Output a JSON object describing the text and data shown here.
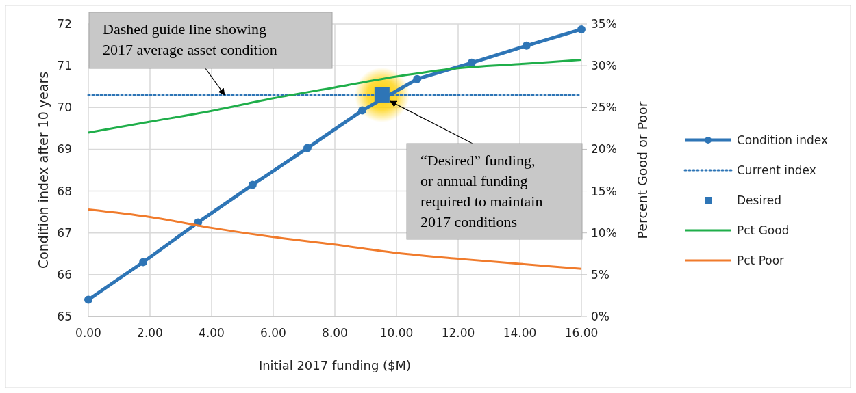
{
  "chart_data": {
    "type": "line",
    "xlabel": "Initial 2017 funding ($M)",
    "ylabel": "Condition index after 10 years",
    "y2label": "Percent Good or Poor",
    "xlim": [
      0,
      16
    ],
    "xticks": [
      {
        "value": 0,
        "label": "0.00"
      },
      {
        "value": 2,
        "label": "2.00"
      },
      {
        "value": 4,
        "label": "4.00"
      },
      {
        "value": 6,
        "label": "6.00"
      },
      {
        "value": 8,
        "label": "8.00"
      },
      {
        "value": 10,
        "label": "10.00"
      },
      {
        "value": 12,
        "label": "12.00"
      },
      {
        "value": 14,
        "label": "14.00"
      },
      {
        "value": 16,
        "label": "16.00"
      }
    ],
    "ylim": [
      65,
      72
    ],
    "yticks": [
      65,
      66,
      67,
      68,
      69,
      70,
      71,
      72
    ],
    "y2lim": [
      0,
      35
    ],
    "y2ticks": [
      {
        "value": 0,
        "label": "0%"
      },
      {
        "value": 5,
        "label": "5%"
      },
      {
        "value": 10,
        "label": "10%"
      },
      {
        "value": 15,
        "label": "15%"
      },
      {
        "value": 20,
        "label": "20%"
      },
      {
        "value": 25,
        "label": "25%"
      },
      {
        "value": 30,
        "label": "30%"
      },
      {
        "value": 35,
        "label": "35%"
      }
    ],
    "grid": true,
    "legend": "right",
    "series": [
      {
        "name": "Condition index",
        "color": "#2e75b6",
        "marker": "circle",
        "line_style": "solid",
        "x": [
          0,
          1.78,
          3.56,
          5.33,
          7.11,
          8.89,
          10.67,
          12.44,
          14.22,
          16
        ],
        "values": [
          65.4,
          66.3,
          67.25,
          68.15,
          69.03,
          69.93,
          70.68,
          71.07,
          71.48,
          71.87
        ]
      },
      {
        "name": "Current index",
        "color": "#2e75b6",
        "marker": "none",
        "line_style": "dotted",
        "x": [
          0,
          16
        ],
        "values": [
          70.3,
          70.3
        ]
      },
      {
        "name": "Desired",
        "type": "scatter",
        "color": "#2e75b6",
        "marker": "square",
        "x": [
          9.53
        ],
        "values": [
          70.3
        ]
      },
      {
        "name": "Pct Good",
        "axis": "y2",
        "color": "#1fae4a",
        "marker": "none",
        "line_style": "solid",
        "x": [
          0,
          2,
          4,
          6,
          8,
          10,
          12,
          14,
          16
        ],
        "values": [
          22.0,
          23.3,
          24.6,
          26.1,
          27.4,
          28.7,
          29.7,
          30.2,
          30.7
        ]
      },
      {
        "name": "Pct Poor",
        "axis": "y2",
        "color": "#f07b2c",
        "marker": "none",
        "line_style": "solid",
        "x": [
          0,
          2,
          4,
          6,
          8,
          10,
          12,
          14,
          16
        ],
        "values": [
          12.8,
          11.9,
          10.6,
          9.5,
          8.6,
          7.6,
          6.9,
          6.3,
          5.7
        ]
      }
    ],
    "annotations": [
      {
        "text": "Dashed guide line showing\n2017 average asset condition",
        "x": 4.42,
        "y": 70.3
      },
      {
        "text": "“Desired” funding,\nor annual funding\nrequired to maintain\n2017 conditions",
        "x": 9.8,
        "y": 70.15
      }
    ]
  }
}
